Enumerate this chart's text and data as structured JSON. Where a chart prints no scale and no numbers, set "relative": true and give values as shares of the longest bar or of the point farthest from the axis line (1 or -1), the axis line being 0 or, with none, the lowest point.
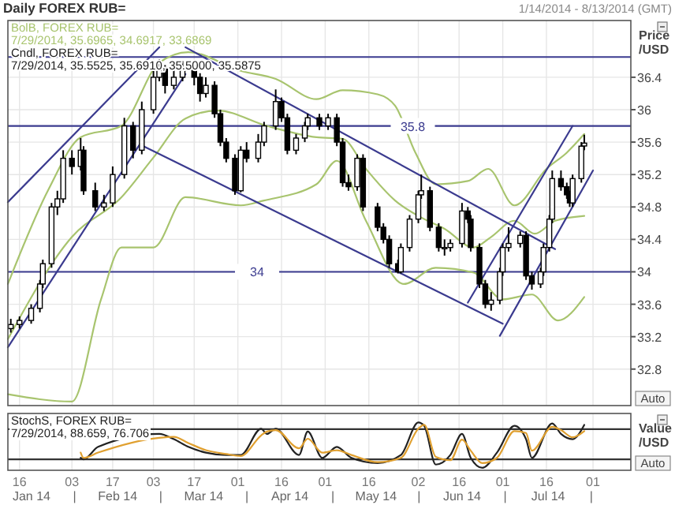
{
  "chart_data": [
    {
      "type": "candlestick",
      "title": "Daily FOREX RUB=",
      "subtitle": "1/14/2014 - 8/13/2014 (GMT)",
      "ylabel": "Price /USD",
      "color": "#000000",
      "x": [
        "2014-01-13",
        "2014-01-16",
        "2014-01-20",
        "2014-01-23",
        "2014-01-24",
        "2014-01-27",
        "2014-01-29",
        "2014-01-31",
        "2014-02-03",
        "2014-02-06",
        "2014-02-07",
        "2014-02-11",
        "2014-02-14",
        "2014-02-17",
        "2014-02-21",
        "2014-02-24",
        "2014-02-27",
        "2014-03-03",
        "2014-03-05",
        "2014-03-07",
        "2014-03-10",
        "2014-03-13",
        "2014-03-17",
        "2014-03-19",
        "2014-03-21",
        "2014-03-24",
        "2014-03-26",
        "2014-03-28",
        "2014-03-31",
        "2014-04-02",
        "2014-04-04",
        "2014-04-08",
        "2014-04-10",
        "2014-04-14",
        "2014-04-16",
        "2014-04-18",
        "2014-04-21",
        "2014-04-24",
        "2014-04-25",
        "2014-04-29",
        "2014-05-02",
        "2014-05-05",
        "2014-05-07",
        "2014-05-09",
        "2014-05-12",
        "2014-05-14",
        "2014-05-19",
        "2014-05-21",
        "2014-05-23",
        "2014-05-26",
        "2014-05-27",
        "2014-05-30",
        "2014-06-02",
        "2014-06-03",
        "2014-06-06",
        "2014-06-09",
        "2014-06-11",
        "2014-06-13",
        "2014-06-17",
        "2014-06-19",
        "2014-06-20",
        "2014-06-23",
        "2014-06-25",
        "2014-06-27",
        "2014-06-30",
        "2014-07-01",
        "2014-07-03",
        "2014-07-07",
        "2014-07-09",
        "2014-07-11",
        "2014-07-14",
        "2014-07-15",
        "2014-07-17",
        "2014-07-18",
        "2014-07-21",
        "2014-07-23",
        "2014-07-24",
        "2014-07-25",
        "2014-07-28",
        "2014-07-29"
      ],
      "ohlc": [
        [
          33.3,
          33.42,
          33.25,
          33.35
        ],
        [
          33.35,
          33.45,
          33.3,
          33.4
        ],
        [
          33.4,
          33.6,
          33.36,
          33.55
        ],
        [
          33.55,
          33.9,
          33.5,
          33.85
        ],
        [
          33.85,
          34.15,
          33.8,
          34.1
        ],
        [
          34.1,
          34.85,
          34.05,
          34.8
        ],
        [
          34.8,
          35.0,
          34.7,
          34.9
        ],
        [
          34.9,
          35.5,
          34.85,
          35.4
        ],
        [
          35.4,
          35.5,
          35.2,
          35.3
        ],
        [
          35.3,
          35.65,
          35.25,
          35.5
        ],
        [
          35.5,
          35.55,
          34.95,
          35.0
        ],
        [
          35.0,
          35.1,
          34.75,
          34.8
        ],
        [
          34.8,
          34.95,
          34.75,
          34.85
        ],
        [
          34.85,
          35.3,
          34.8,
          35.2
        ],
        [
          35.2,
          35.9,
          35.15,
          35.8
        ],
        [
          35.8,
          35.85,
          35.4,
          35.5
        ],
        [
          35.5,
          36.1,
          35.45,
          36.0
        ],
        [
          36.0,
          36.5,
          35.95,
          36.4
        ],
        [
          36.4,
          36.62,
          36.35,
          36.5
        ],
        [
          36.5,
          36.55,
          36.2,
          36.3
        ],
        [
          36.3,
          36.5,
          36.25,
          36.4
        ],
        [
          36.4,
          36.6,
          36.35,
          36.5
        ],
        [
          36.5,
          36.55,
          36.3,
          36.4
        ],
        [
          36.4,
          36.45,
          36.1,
          36.2
        ],
        [
          36.2,
          36.4,
          36.15,
          36.3
        ],
        [
          36.3,
          36.35,
          35.9,
          35.95
        ],
        [
          35.95,
          36.0,
          35.55,
          35.6
        ],
        [
          35.6,
          35.65,
          35.35,
          35.4
        ],
        [
          35.4,
          35.45,
          34.95,
          35.0
        ],
        [
          35.0,
          35.55,
          34.98,
          35.5
        ],
        [
          35.5,
          35.6,
          35.35,
          35.4
        ],
        [
          35.4,
          35.7,
          35.35,
          35.6
        ],
        [
          35.6,
          35.85,
          35.55,
          35.8
        ],
        [
          35.8,
          36.25,
          35.75,
          36.1
        ],
        [
          36.1,
          36.15,
          35.85,
          35.9
        ],
        [
          35.9,
          35.95,
          35.45,
          35.5
        ],
        [
          35.5,
          35.7,
          35.45,
          35.65
        ],
        [
          35.65,
          35.85,
          35.6,
          35.8
        ],
        [
          35.8,
          35.95,
          35.75,
          35.9
        ],
        [
          35.9,
          35.95,
          35.75,
          35.8
        ],
        [
          35.8,
          35.95,
          35.75,
          35.9
        ],
        [
          35.9,
          35.95,
          35.55,
          35.6
        ],
        [
          35.6,
          35.65,
          35.05,
          35.1
        ],
        [
          35.1,
          35.2,
          35.0,
          35.05
        ],
        [
          35.05,
          35.45,
          35.0,
          35.4
        ],
        [
          35.4,
          35.45,
          34.75,
          34.8
        ],
        [
          34.8,
          34.85,
          34.5,
          34.55
        ],
        [
          34.55,
          34.6,
          34.35,
          34.4
        ],
        [
          34.4,
          34.45,
          34.05,
          34.1
        ],
        [
          34.1,
          34.15,
          33.98,
          34.0
        ],
        [
          34.0,
          34.35,
          33.98,
          34.3
        ],
        [
          34.3,
          34.7,
          34.25,
          34.65
        ],
        [
          34.65,
          35.0,
          34.6,
          34.95
        ],
        [
          34.95,
          35.2,
          34.9,
          35.0
        ],
        [
          35.0,
          35.05,
          34.5,
          34.55
        ],
        [
          34.55,
          34.6,
          34.25,
          34.3
        ],
        [
          34.3,
          34.4,
          34.2,
          34.3
        ],
        [
          34.3,
          34.4,
          34.25,
          34.35
        ],
        [
          34.35,
          34.85,
          34.3,
          34.75
        ],
        [
          34.75,
          34.8,
          34.6,
          34.65
        ],
        [
          34.65,
          34.7,
          34.25,
          34.3
        ],
        [
          34.3,
          34.35,
          33.8,
          33.85
        ],
        [
          33.85,
          33.9,
          33.55,
          33.6
        ],
        [
          33.6,
          33.75,
          33.52,
          33.65
        ],
        [
          33.65,
          34.05,
          33.6,
          34.0
        ],
        [
          34.0,
          34.35,
          33.95,
          34.3
        ],
        [
          34.3,
          34.55,
          34.25,
          34.35
        ],
        [
          34.35,
          34.5,
          34.3,
          34.45
        ],
        [
          34.45,
          34.5,
          33.9,
          33.95
        ],
        [
          33.95,
          34.0,
          33.78,
          33.85
        ],
        [
          33.85,
          34.05,
          33.8,
          34.0
        ],
        [
          34.0,
          34.35,
          33.95,
          34.3
        ],
        [
          34.3,
          34.7,
          34.25,
          34.65
        ],
        [
          34.65,
          35.25,
          34.6,
          35.15
        ],
        [
          35.15,
          35.25,
          35.0,
          35.05
        ],
        [
          35.05,
          35.1,
          34.9,
          34.95
        ],
        [
          34.95,
          35.0,
          34.8,
          34.85
        ],
        [
          34.85,
          35.2,
          34.8,
          35.15
        ],
        [
          35.15,
          35.6,
          35.1,
          35.55
        ],
        [
          35.5525,
          35.691,
          35.5,
          35.5875
        ]
      ],
      "series": [
        {
          "type": "line",
          "color": "#a8c46e",
          "x": [
            "2014-01-12",
            "2014-01-26",
            "2014-02-06",
            "2014-02-20",
            "2014-03-05",
            "2014-03-15",
            "2014-04-02",
            "2014-04-14",
            "2014-04-28",
            "2014-05-07",
            "2014-05-19",
            "2014-05-25",
            "2014-06-01",
            "2014-06-08",
            "2014-06-19",
            "2014-06-26",
            "2014-07-05",
            "2014-07-16",
            "2014-07-23",
            "2014-07-29"
          ],
          "values": [
            33.85,
            35.02,
            35.66,
            35.8,
            36.58,
            36.71,
            36.48,
            36.38,
            36.13,
            36.24,
            36.19,
            36.05,
            35.47,
            35.08,
            35.12,
            35.27,
            34.82,
            35.27,
            35.47,
            35.7
          ]
        },
        {
          "type": "line",
          "color": "#a8c46e",
          "x": [
            "2014-01-12",
            "2014-02-03",
            "2014-02-20",
            "2014-03-03",
            "2014-03-14",
            "2014-03-25",
            "2014-04-11",
            "2014-04-28",
            "2014-05-07",
            "2014-05-15",
            "2014-05-25",
            "2014-06-03",
            "2014-06-11",
            "2014-06-21",
            "2014-06-27",
            "2014-07-05",
            "2014-07-12",
            "2014-07-19",
            "2014-07-29"
          ],
          "values": [
            33.17,
            34.43,
            34.92,
            35.41,
            35.89,
            35.99,
            35.8,
            35.66,
            35.64,
            35.27,
            34.88,
            34.67,
            34.53,
            34.3,
            34.43,
            34.63,
            34.47,
            34.63,
            34.69
          ]
        },
        {
          "type": "line",
          "color": "#a8c46e",
          "x": [
            "2014-01-12",
            "2014-02-03",
            "2014-02-13",
            "2014-02-20",
            "2014-03-03",
            "2014-03-14",
            "2014-04-02",
            "2014-04-10",
            "2014-04-28",
            "2014-05-05",
            "2014-05-15",
            "2014-05-28",
            "2014-06-08",
            "2014-06-21",
            "2014-07-01",
            "2014-07-11",
            "2014-07-20",
            "2014-07-29"
          ],
          "values": [
            32.49,
            32.4,
            33.66,
            34.3,
            34.3,
            34.92,
            34.82,
            34.88,
            35.08,
            35.37,
            34.63,
            33.85,
            34.05,
            33.99,
            33.66,
            33.72,
            33.4,
            33.69
          ]
        },
        {
          "type": "line",
          "color": "#3b3b8f",
          "x": [
            "2014-01-12",
            "2014-03-05"
          ],
          "values": [
            34.86,
            36.77
          ]
        },
        {
          "type": "line",
          "color": "#3b3b8f",
          "x": [
            "2014-01-12",
            "2014-03-14"
          ],
          "values": [
            33.07,
            36.44
          ]
        },
        {
          "type": "line",
          "color": "#3b3b8f",
          "x": [
            "2014-03-14",
            "2014-07-19"
          ],
          "values": [
            36.77,
            34.28
          ]
        },
        {
          "type": "line",
          "color": "#3b3b8f",
          "x": [
            "2014-02-27",
            "2014-07-01"
          ],
          "values": [
            35.56,
            33.36
          ]
        },
        {
          "type": "line",
          "color": "#3b3b8f",
          "x": [
            "2014-06-19",
            "2014-07-25"
          ],
          "values": [
            33.62,
            35.8
          ]
        },
        {
          "type": "line",
          "color": "#3b3b8f",
          "x": [
            "2014-06-30",
            "2014-08-01"
          ],
          "values": [
            33.21,
            35.25
          ]
        }
      ],
      "ref_lines": [
        {
          "axis": "y",
          "value": 36.65,
          "color": "#3b3b8f"
        },
        {
          "axis": "y",
          "value": 35.8,
          "label": "35.8",
          "color": "#3b3b8f"
        },
        {
          "axis": "y",
          "value": 34,
          "label": "34",
          "color": "#3b3b8f"
        }
      ],
      "xlim": [
        "2014-01-12",
        "2014-08-14"
      ],
      "ylim": [
        32.35,
        37.1
      ],
      "yticks": [
        32.8,
        33.2,
        33.6,
        34,
        34.4,
        34.8,
        35.2,
        35.6,
        36,
        36.4
      ],
      "xticks": [
        {
          "value": "2014-01-16",
          "label": null
        },
        {
          "value": "2014-02-03",
          "label": null
        },
        {
          "value": "2014-02-17",
          "label": null
        },
        {
          "value": "2014-03-03",
          "label": null
        },
        {
          "value": "2014-03-17",
          "label": null
        },
        {
          "value": "2014-04-01",
          "label": null
        },
        {
          "value": "2014-04-16",
          "label": null
        },
        {
          "value": "2014-05-01",
          "label": null
        },
        {
          "value": "2014-05-16",
          "label": null
        },
        {
          "value": "2014-06-02",
          "label": null
        },
        {
          "value": "2014-06-16",
          "label": null
        },
        {
          "value": "2014-07-01",
          "label": null
        },
        {
          "value": "2014-07-16",
          "label": null
        },
        {
          "value": "2014-08-01",
          "label": null
        }
      ],
      "grid": true,
      "tick_labels": "y",
      "annotations": [
        "BolB, FOREX RUB=",
        "7/29/2014, 35.6965, 34.6917, 33.6869",
        "Cndl, FOREX RUB=",
        "7/29/2014, 35.5525, 35.6910, 35.5000, 35.5875",
        "Auto"
      ]
    },
    {
      "type": "line",
      "relative": true,
      "ylabel": "Value /USD",
      "series": [
        {
          "color": "#222222",
          "x": [
            "2014-02-06",
            "2014-02-07",
            "2014-02-12",
            "2014-03-05",
            "2014-03-10",
            "2014-03-15",
            "2014-03-21",
            "2014-03-28",
            "2014-04-02",
            "2014-04-09",
            "2014-04-11",
            "2014-04-14",
            "2014-04-22",
            "2014-04-25",
            "2014-04-30",
            "2014-05-05",
            "2014-05-10",
            "2014-05-19",
            "2014-05-27",
            "2014-06-02",
            "2014-06-04",
            "2014-06-08",
            "2014-06-13",
            "2014-06-17",
            "2014-06-20",
            "2014-06-24",
            "2014-06-29",
            "2014-07-05",
            "2014-07-09",
            "2014-07-11",
            "2014-07-18",
            "2014-07-21",
            "2014-07-25",
            "2014-07-29"
          ],
          "values": [
            0.26,
            0.23,
            0.49,
            0.76,
            0.65,
            0.49,
            0.37,
            0.32,
            0.32,
            0.87,
            0.76,
            0.87,
            0.32,
            0.81,
            0.26,
            0.49,
            0.26,
            0.15,
            0.32,
            1.0,
            0.93,
            0.12,
            0.32,
            0.76,
            0.26,
            0.05,
            0.37,
            0.93,
            0.65,
            0.26,
            0.98,
            0.76,
            0.65,
            0.95
          ]
        },
        {
          "color": "#e0a030",
          "x": [
            "2014-02-06",
            "2014-02-07",
            "2014-02-12",
            "2014-03-05",
            "2014-03-10",
            "2014-03-15",
            "2014-03-21",
            "2014-03-28",
            "2014-04-02",
            "2014-04-09",
            "2014-04-11",
            "2014-04-14",
            "2014-04-22",
            "2014-04-25",
            "2014-04-30",
            "2014-05-05",
            "2014-05-10",
            "2014-05-19",
            "2014-05-27",
            "2014-06-02",
            "2014-06-04",
            "2014-06-08",
            "2014-06-13",
            "2014-06-17",
            "2014-06-20",
            "2014-06-24",
            "2014-06-29",
            "2014-07-05",
            "2014-07-09",
            "2014-07-11",
            "2014-07-18",
            "2014-07-21",
            "2014-07-25",
            "2014-07-29"
          ],
          "values": [
            0.37,
            0.26,
            0.37,
            0.68,
            0.7,
            0.57,
            0.42,
            0.34,
            0.3,
            0.73,
            0.81,
            0.84,
            0.46,
            0.66,
            0.37,
            0.42,
            0.32,
            0.17,
            0.26,
            0.87,
            0.95,
            0.28,
            0.21,
            0.64,
            0.41,
            0.15,
            0.26,
            0.82,
            0.78,
            0.41,
            0.91,
            0.84,
            0.69,
            0.82
          ]
        }
      ],
      "ref_lines": [
        {
          "axis": "y",
          "value": 0.86,
          "color": "#333333"
        },
        {
          "axis": "y",
          "value": 0.23,
          "color": "#333333"
        }
      ],
      "xlim": [
        "2014-01-12",
        "2014-08-14"
      ],
      "xticks": [
        {
          "value": "2014-01-16",
          "label": "16"
        },
        {
          "value": "2014-02-03",
          "label": "03"
        },
        {
          "value": "2014-02-17",
          "label": "17"
        },
        {
          "value": "2014-03-03",
          "label": "03"
        },
        {
          "value": "2014-03-17",
          "label": "17"
        },
        {
          "value": "2014-04-01",
          "label": "01"
        },
        {
          "value": "2014-04-16",
          "label": "16"
        },
        {
          "value": "2014-05-01",
          "label": "01"
        },
        {
          "value": "2014-05-16",
          "label": "16"
        },
        {
          "value": "2014-06-02",
          "label": "02"
        },
        {
          "value": "2014-06-16",
          "label": "16"
        },
        {
          "value": "2014-07-01",
          "label": "01"
        },
        {
          "value": "2014-07-16",
          "label": "16"
        },
        {
          "value": "2014-08-01",
          "label": "01"
        }
      ],
      "grid": "x",
      "tick_labels": "x",
      "annotations": [
        "StochS, FOREX RUB=",
        "7/29/2014, 88.659, 76.706",
        "Auto",
        "Jan 14",
        "|",
        "Feb 14",
        "|",
        "Mar 14",
        "|",
        "Apr 14",
        "|",
        "May 14",
        "|",
        "Jun 14",
        "|",
        "Jul 14",
        "|"
      ]
    }
  ]
}
